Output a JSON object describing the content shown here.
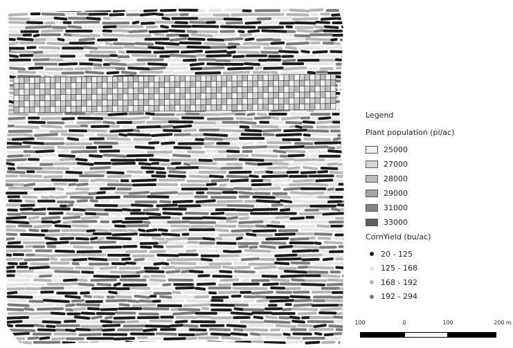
{
  "legend": {
    "title": "Legend",
    "population_title": "Plant population (pl/ac)",
    "population_classes": [
      {
        "label": "25000",
        "color": "#f2f2f2"
      },
      {
        "label": "27000",
        "color": "#d6d6d6"
      },
      {
        "label": "28000",
        "color": "#bdbdbd"
      },
      {
        "label": "29000",
        "color": "#a3a3a3"
      },
      {
        "label": "31000",
        "color": "#858585"
      },
      {
        "label": "33000",
        "color": "#5e5e5e"
      }
    ],
    "yield_title": "CornYield (bu/ac)",
    "yield_classes": [
      {
        "label": "20 - 125",
        "color": "#1a1a1a"
      },
      {
        "label": "125 - 168",
        "color": "#e6e6e6"
      },
      {
        "label": "168 - 192",
        "color": "#b5b5b5"
      },
      {
        "label": "192 - 294",
        "color": "#7a7a7a"
      }
    ]
  },
  "scalebar": {
    "labels": [
      "100",
      "0",
      "100",
      "200 m"
    ]
  }
}
